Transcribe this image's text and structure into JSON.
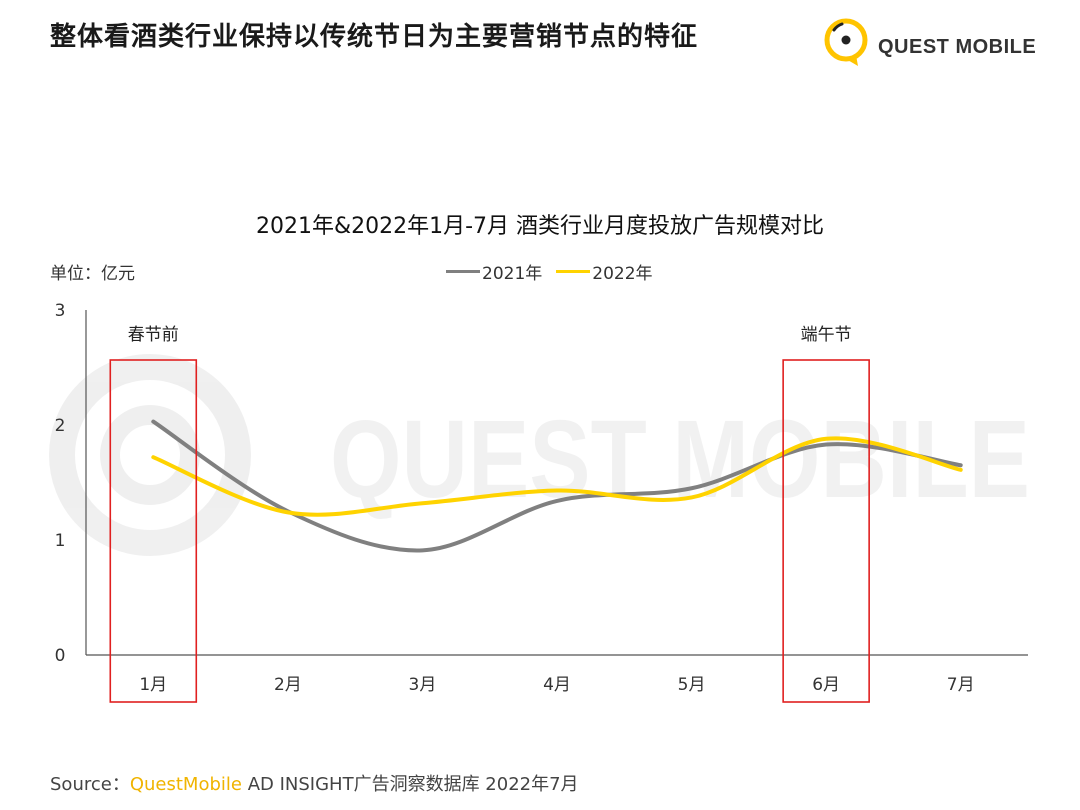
{
  "header": {
    "title": "整体看酒类行业保持以传统节日为主要营销节点的特征",
    "brand": "QUEST MOBILE"
  },
  "watermark": {
    "text": "QUEST MOBILE"
  },
  "chart_data": {
    "type": "line",
    "title": "2021年&2022年1月-7月 酒类行业月度投放广告规模对比",
    "unit_label": "单位：亿元",
    "categories": [
      "1月",
      "2月",
      "3月",
      "4月",
      "5月",
      "6月",
      "7月"
    ],
    "series": [
      {
        "name": "2021年",
        "color": "#808080",
        "values": [
          2.03,
          1.25,
          0.91,
          1.34,
          1.45,
          1.83,
          1.65
        ]
      },
      {
        "name": "2022年",
        "color": "#FFD300",
        "values": [
          1.72,
          1.24,
          1.32,
          1.43,
          1.37,
          1.88,
          1.61
        ]
      }
    ],
    "ylim": [
      0,
      3
    ],
    "yticks": [
      0,
      1,
      2,
      3
    ],
    "grid": false,
    "legend_position": "top-center",
    "highlights": [
      {
        "category_index": 0,
        "label": "春节前"
      },
      {
        "category_index": 5,
        "label": "端午节"
      }
    ],
    "highlight_color": "#E02020"
  },
  "source": {
    "prefix": "Source：",
    "brand": "QuestMobile",
    "rest": " AD INSIGHT广告洞察数据库 2022年7月"
  }
}
